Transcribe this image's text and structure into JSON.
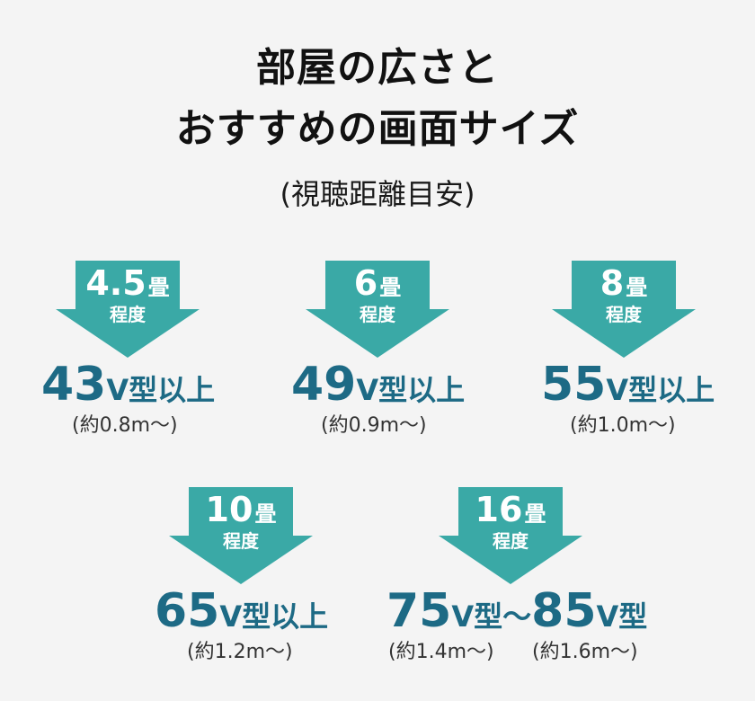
{
  "header": {
    "title_line1": "部屋の広さと",
    "title_line2": "おすすめの画面サイズ",
    "subtitle": "(視聴距離目安)"
  },
  "colors": {
    "arrow": "#3aa9a6",
    "size_text": "#1d6a85"
  },
  "cards": [
    {
      "room": "4.5",
      "unit": "畳",
      "approx": "程度",
      "size": "43",
      "suffix": "V型以上",
      "distance": "(約0.8m〜)"
    },
    {
      "room": "6",
      "unit": "畳",
      "approx": "程度",
      "size": "49",
      "suffix": "V型以上",
      "distance": "(約0.9m〜)"
    },
    {
      "room": "8",
      "unit": "畳",
      "approx": "程度",
      "size": "55",
      "suffix": "V型以上",
      "distance": "(約1.0m〜)"
    },
    {
      "room": "10",
      "unit": "畳",
      "approx": "程度",
      "size": "65",
      "suffix": "V型以上",
      "distance": "(約1.2m〜)"
    },
    {
      "room": "16",
      "unit": "畳",
      "approx": "程度",
      "size_a": "75",
      "suffix_a": "V型〜",
      "size_b": "85",
      "suffix_b": "V型",
      "distance_a": "(約1.4m〜)",
      "distance_b": "(約1.6m〜)"
    }
  ]
}
